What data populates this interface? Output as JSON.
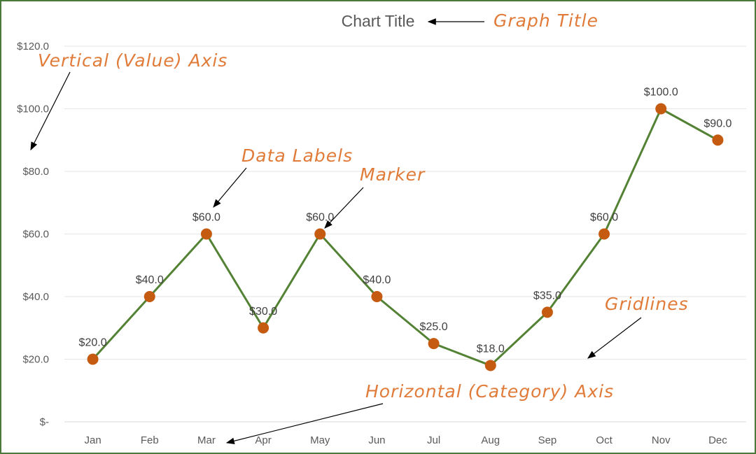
{
  "chart_data": {
    "type": "line",
    "title": "Chart Title",
    "categories": [
      "Jan",
      "Feb",
      "Mar",
      "Apr",
      "May",
      "Jun",
      "Jul",
      "Aug",
      "Sep",
      "Oct",
      "Nov",
      "Dec"
    ],
    "values": [
      20,
      40,
      60,
      30,
      60,
      40,
      25,
      18,
      35,
      60,
      100,
      90
    ],
    "data_labels": [
      "$20.0",
      "$40.0",
      "$60.0",
      "$30.0",
      "$60.0",
      "$40.0",
      "$25.0",
      "$18.0",
      "$35.0",
      "$60.0",
      "$100.0",
      "$90.0"
    ],
    "ylim": [
      0,
      120
    ],
    "y_ticks": [
      {
        "value": 0,
        "label": "$-"
      },
      {
        "value": 20,
        "label": "$20.0"
      },
      {
        "value": 40,
        "label": "$40.0"
      },
      {
        "value": 60,
        "label": "$60.0"
      },
      {
        "value": 80,
        "label": "$80.0"
      },
      {
        "value": 100,
        "label": "$100.0"
      },
      {
        "value": 120,
        "label": "$120.0"
      }
    ],
    "grid": true,
    "legend": "none",
    "line_color": "#548235",
    "marker_color": "#c55a11",
    "annotations": {
      "graph_title": "Graph Title",
      "vertical_axis": "Vertical (Value) Axis",
      "data_labels": "Data Labels",
      "marker": "Marker",
      "gridlines": "Gridlines",
      "horizontal_axis": "Horizontal (Category) Axis"
    },
    "annotation_color": "#e07b39"
  }
}
